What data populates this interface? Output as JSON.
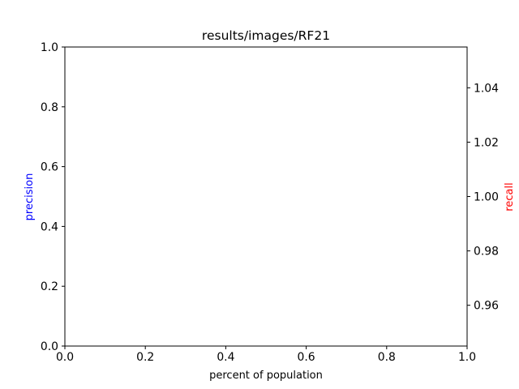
{
  "chart_data": {
    "type": "line",
    "title": "results/images/RF21",
    "xlabel": "percent of population",
    "ylabel": "precision",
    "ylabel_right": "recall",
    "xlim": [
      0.0,
      1.0
    ],
    "ylim": [
      0.0,
      1.0
    ],
    "ylim_right": [
      0.945,
      1.055
    ],
    "x_ticks": [
      "0.0",
      "0.2",
      "0.4",
      "0.6",
      "0.8",
      "1.0"
    ],
    "y_ticks": [
      "0.0",
      "0.2",
      "0.4",
      "0.6",
      "0.8",
      "1.0"
    ],
    "y_ticks_right": [
      "0.96",
      "0.98",
      "1.00",
      "1.02",
      "1.04"
    ],
    "series": [],
    "grid": false,
    "colors": {
      "left_axis_label": "#0000ff",
      "right_axis_label": "#ff0000",
      "axes": "#000000"
    }
  }
}
